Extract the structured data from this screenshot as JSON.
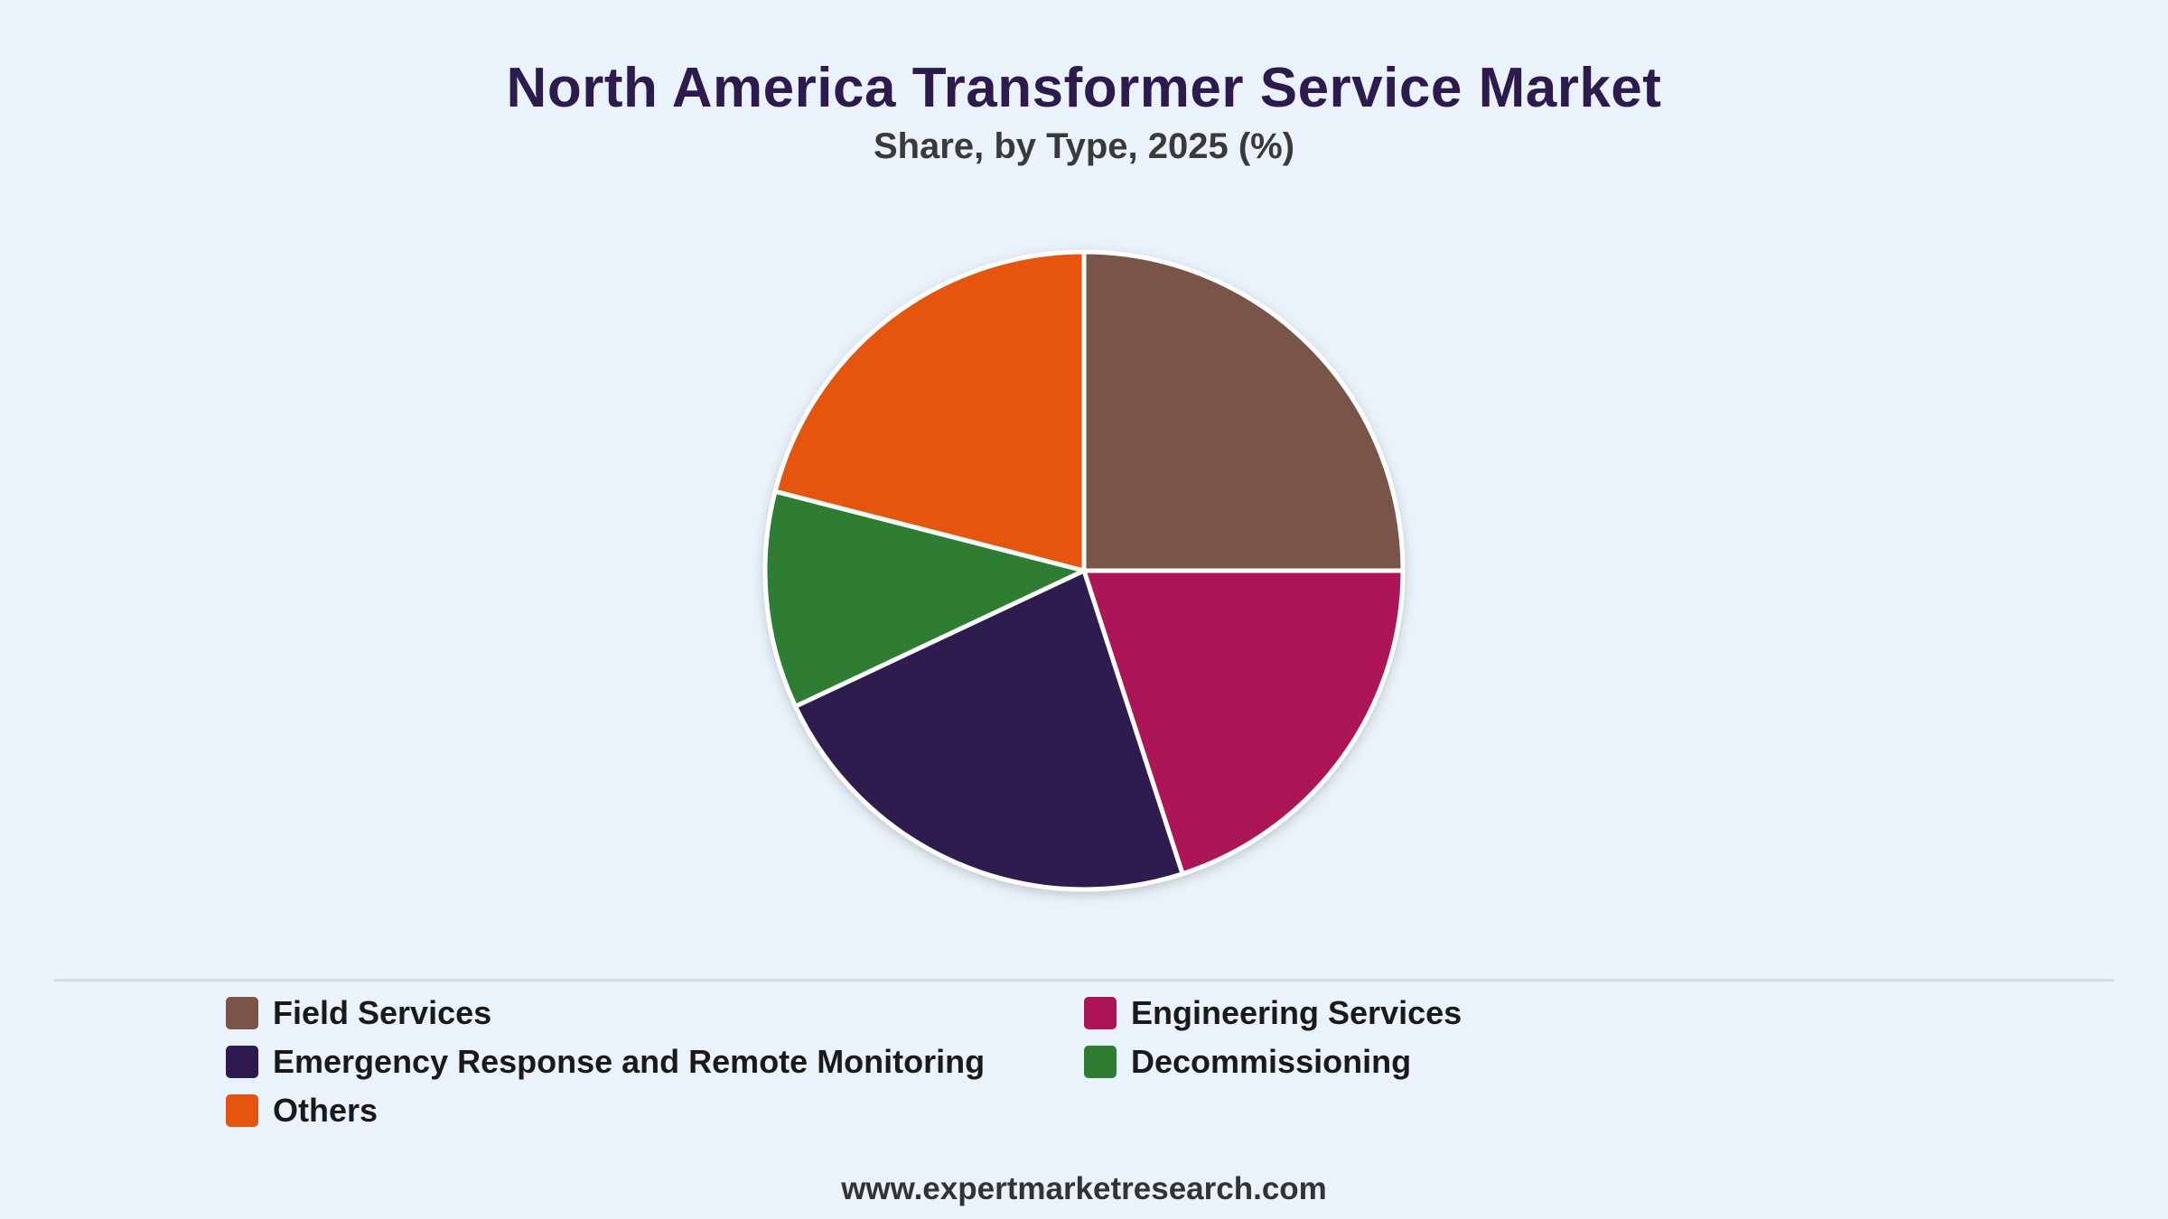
{
  "title": "North America Transformer Service Market",
  "subtitle": "Share, by Type, 2025 (%)",
  "footer": "www.expertmarketresearch.com",
  "chart_data": {
    "type": "pie",
    "title": "North America Transformer Service Market",
    "subtitle": "Share, by Type, 2025 (%)",
    "legend_position": "bottom",
    "slices": [
      {
        "label": "Field Services",
        "value": 25,
        "color": "#795548"
      },
      {
        "label": "Engineering Services",
        "value": 20,
        "color": "#ad1457"
      },
      {
        "label": "Emergency Response and Remote Monitoring",
        "value": 23,
        "color": "#2e1a4f"
      },
      {
        "label": "Decommissioning",
        "value": 11,
        "color": "#2e7d32"
      },
      {
        "label": "Others",
        "value": 21,
        "color": "#e65510"
      }
    ]
  },
  "legend": [
    {
      "label": "Field Services",
      "color": "#795548"
    },
    {
      "label": "Engineering Services",
      "color": "#ad1457"
    },
    {
      "label": "Emergency Response and Remote Monitoring",
      "color": "#2e1a4f"
    },
    {
      "label": "Decommissioning",
      "color": "#2e7d32"
    },
    {
      "label": "Others",
      "color": "#e65510"
    }
  ]
}
